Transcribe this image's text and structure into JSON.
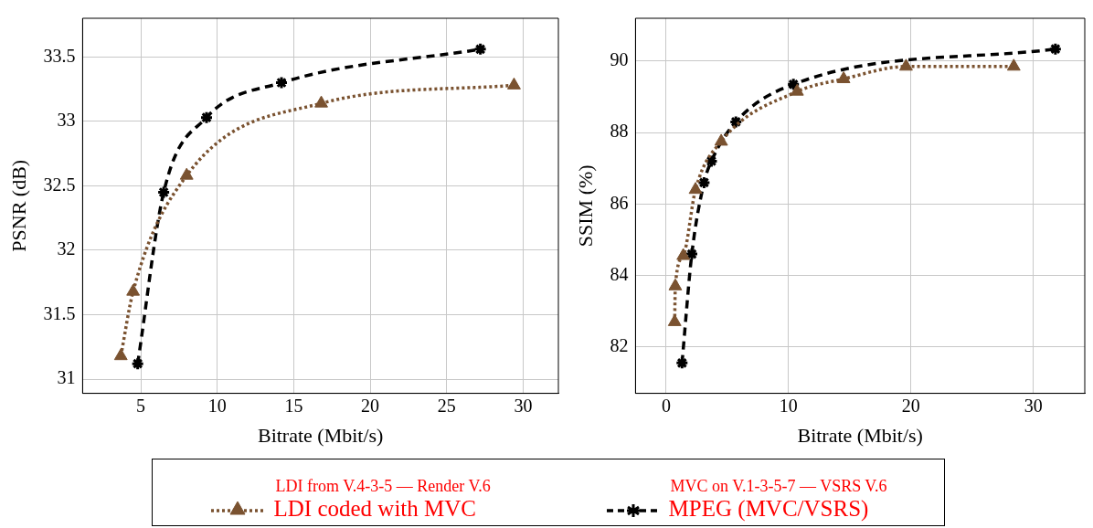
{
  "chart_data": [
    {
      "type": "line",
      "xlabel": "Bitrate (Mbit/s)",
      "ylabel": "PSNR (dB)",
      "xlim": [
        1.2,
        32.3
      ],
      "xticks": [
        5,
        10,
        15,
        20,
        25,
        30
      ],
      "ylim": [
        30.89,
        33.8
      ],
      "yticks": [
        31,
        31.5,
        32,
        32.5,
        33,
        33.5
      ],
      "grid": true,
      "legend": "bottom",
      "annotations": [
        "LDI from V.4-3-5 — Render V.6",
        "MVC on V.1-3-5-7 — VSRS V.6"
      ],
      "series": [
        {
          "name": "LDI coded with MVC",
          "color": "#7a5230",
          "marker": "triangle",
          "line_style": "dotted",
          "x": [
            3.7,
            4.5,
            8.0,
            16.8,
            29.4
          ],
          "values": [
            31.18,
            31.68,
            32.58,
            33.14,
            33.28
          ]
        },
        {
          "name": "MPEG (MVC/VSRS)",
          "color": "#000000",
          "marker": "cross",
          "line_style": "dashed",
          "x": [
            4.8,
            6.5,
            9.3,
            14.2,
            27.2
          ],
          "values": [
            31.12,
            32.45,
            33.03,
            33.3,
            33.56
          ]
        }
      ]
    },
    {
      "type": "line",
      "xlabel": "Bitrate (Mbit/s)",
      "ylabel": "SSIM (%)",
      "xlim": [
        -2.5,
        34.2
      ],
      "xticks": [
        0,
        10,
        20,
        30
      ],
      "ylim": [
        80.7,
        91.2
      ],
      "yticks": [
        82,
        84,
        86,
        88,
        90
      ],
      "grid": true,
      "series": [
        {
          "color": "#7a5230",
          "marker": "triangle",
          "line_style": "dotted",
          "x": [
            0.7,
            0.75,
            1.4,
            2.4,
            4.5,
            10.7,
            14.5,
            19.6,
            28.4
          ],
          "values": [
            82.7,
            83.7,
            84.55,
            86.4,
            87.75,
            89.15,
            89.5,
            89.85,
            89.85
          ]
        },
        {
          "color": "#000000",
          "marker": "cross",
          "line_style": "dashed",
          "x": [
            1.3,
            2.1,
            3.1,
            3.7,
            5.7,
            10.4,
            31.8
          ],
          "values": [
            81.55,
            84.6,
            86.6,
            87.2,
            88.3,
            89.35,
            90.34
          ]
        }
      ]
    }
  ]
}
